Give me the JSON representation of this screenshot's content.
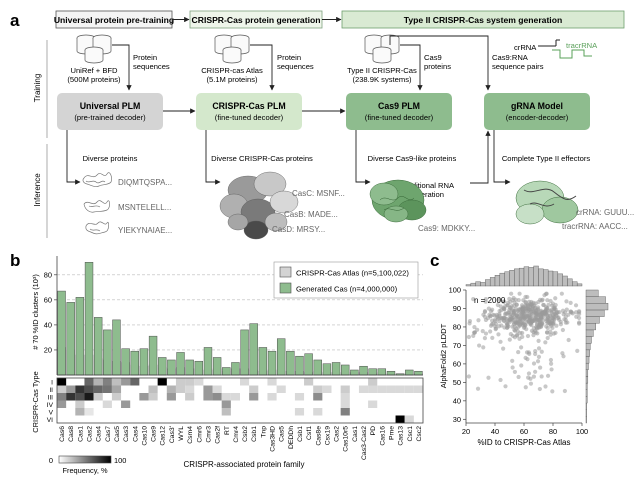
{
  "panel_a": {
    "letter": "a",
    "stage_titles": [
      "Universal protein pre-training",
      "CRISPR-Cas protein generation",
      "Type II CRISPR-Cas system generation"
    ],
    "row_labels": {
      "training": "Training",
      "inference": "Inference"
    },
    "datasets": [
      {
        "line1": "UniRef + BFD",
        "line2": "(500M proteins)"
      },
      {
        "line1": "CRISPR-cas Atlas",
        "line2": "(5.1M proteins)"
      },
      {
        "line1": "Type II CRISPR-Cas",
        "line2": "(238.9K systems)"
      }
    ],
    "arrow_labels": {
      "protein_sequences": [
        "Protein",
        "sequences"
      ],
      "cas9_proteins": [
        "Cas9",
        "proteins"
      ],
      "cas9_rna_pairs": [
        "Cas9:RNA",
        "sequence pairs"
      ],
      "conditional_rna": [
        "Conditional RNA",
        "generation"
      ]
    },
    "crrna_label": "crRNA",
    "tracrrna_label": "tracrRNA",
    "models": [
      {
        "title": "Universal PLM",
        "subtitle": "(pre-trained decoder)"
      },
      {
        "title": "CRISPR-Cas PLM",
        "subtitle": "(fine-tuned decoder)"
      },
      {
        "title": "Cas9 PLM",
        "subtitle": "(fine-tuned decoder)"
      },
      {
        "title": "gRNA Model",
        "subtitle": "(encoder-decoder)"
      }
    ],
    "outputs": [
      "Diverse proteins",
      "Diverse CRISPR-Cas proteins",
      "Diverse Cas9-like proteins",
      "Complete Type II effectors"
    ],
    "protein_seqs": [
      "DIQMTQSPA...",
      "MSNTELELL...",
      "YIEKYNAIAE..."
    ],
    "cas_seqs": [
      "CasC: MSNF...",
      "CasB: MADE...",
      "CasD: MRSY..."
    ],
    "cas9_seq": "Cas9: MDKKY...",
    "rna_seqs": [
      "crRNA: GUUU...",
      "tracrRNA: AACC..."
    ]
  },
  "panel_b": {
    "letter": "b",
    "ylabel": "# 70 %ID clusters (10³)",
    "heat_ylabel": "CRISPR-Cas Type",
    "xlabel": "CRISPR-associated protein family",
    "colorbar_label": "Frequency, %",
    "colorbar_min": "0",
    "colorbar_max": "100",
    "legend": [
      "CRISPR-Cas Atlas (n=5,100,022)",
      "Generated Cas (n=4,000,000)"
    ],
    "colors": {
      "atlas": "#d4d4d4",
      "generated": "#8ebc8e",
      "edge": "#4f4f4f"
    }
  },
  "panel_c": {
    "letter": "c",
    "xlabel": "%ID to CRISPR-Cas Atlas",
    "ylabel": "AlphaFold2 pLDDT",
    "annotation": "n = 2000",
    "point_color": "#9a9a9a"
  },
  "chart_data": [
    {
      "type": "bar",
      "stacked": false,
      "categories": [
        "Cas6",
        "Cas8",
        "Cas1",
        "Cas2",
        "Cas4",
        "Cas7",
        "Cas5",
        "Cas3",
        "Cas4",
        "Cas10",
        "Cas9",
        "Cas12",
        "Cas3'",
        "WYL",
        "Csm4",
        "Cmr6",
        "Cmr3",
        "Cas2f",
        "RT",
        "Cmr4",
        "Csb2",
        "Csb1",
        "Tnp",
        "Cas3HD",
        "Cas5",
        "DEDDh",
        "Csb1",
        "Csf1",
        "Cas8e",
        "Csx19",
        "Cas2",
        "Cas10r5",
        "Cas1",
        "Cas3-Cas2",
        "PD",
        "Cas16",
        "Pme",
        "Cas13",
        "Csc1",
        "Csc2"
      ],
      "series": [
        {
          "name": "CRISPR-Cas Atlas (n=5,100,022)",
          "values": [
            22,
            20,
            16,
            16,
            13,
            12,
            11,
            10,
            8,
            7,
            8,
            6,
            5,
            6,
            5,
            5,
            4,
            5,
            3,
            5,
            5,
            4,
            3,
            4,
            3,
            3,
            3,
            2,
            3,
            2,
            2,
            2,
            2,
            2,
            1,
            2,
            1,
            1,
            1,
            1
          ]
        },
        {
          "name": "Generated Cas (n=4,000,000)",
          "values": [
            67,
            58,
            62,
            90,
            46,
            36,
            44,
            21,
            19,
            21,
            31,
            14,
            12,
            18,
            12,
            11,
            22,
            14,
            6,
            10,
            36,
            41,
            22,
            19,
            29,
            19,
            15,
            17,
            12,
            9,
            10,
            8,
            4,
            7,
            5,
            5,
            3,
            1,
            4,
            3
          ]
        }
      ],
      "ylim": [
        0,
        95
      ],
      "yticks": [
        20,
        40,
        60,
        80
      ],
      "heatmap": {
        "rows": [
          "I",
          "II",
          "III",
          "IV",
          "V",
          "VI"
        ],
        "cells": [
          [
            0,
            0,
            1,
            1,
            1,
            0.15
          ],
          [
            0,
            3,
            0.6
          ],
          [
            0,
            4,
            0.3
          ],
          [
            0,
            5,
            0.5
          ],
          [
            0,
            6,
            0.25
          ],
          [
            0,
            7,
            0.4
          ],
          [
            0,
            8,
            0.6
          ],
          [
            0,
            11,
            1
          ],
          [
            0,
            13,
            0.2
          ],
          [
            0,
            14,
            0.2
          ],
          [
            0,
            15,
            0.15
          ],
          [
            0,
            20,
            0.15
          ],
          [
            0,
            23,
            0.15
          ],
          [
            0,
            27,
            0.2
          ],
          [
            0,
            34,
            0.2
          ],
          [
            1,
            0,
            0.2
          ],
          [
            1,
            1,
            0.4
          ],
          [
            1,
            2,
            0.8
          ],
          [
            1,
            3,
            0.7
          ],
          [
            1,
            4,
            0.6
          ],
          [
            1,
            5,
            0.55
          ],
          [
            1,
            6,
            0.35
          ],
          [
            1,
            10,
            0.25
          ],
          [
            1,
            12,
            0.3
          ],
          [
            1,
            13,
            0.2
          ],
          [
            1,
            14,
            0.15
          ],
          [
            1,
            16,
            0.4
          ],
          [
            1,
            17,
            0.15
          ],
          [
            1,
            21,
            0.2
          ],
          [
            1,
            24,
            0.15
          ],
          [
            1,
            28,
            0.2
          ],
          [
            1,
            29,
            0.15
          ],
          [
            1,
            31,
            0.2
          ],
          [
            1,
            33,
            0.15
          ],
          [
            1,
            34,
            0.15
          ],
          [
            1,
            35,
            0.15
          ],
          [
            1,
            36,
            0.15
          ],
          [
            1,
            37,
            0.15
          ],
          [
            1,
            38,
            0.15
          ],
          [
            1,
            39,
            0.15
          ],
          [
            2,
            0,
            0.5
          ],
          [
            2,
            1,
            0.8
          ],
          [
            2,
            2,
            0.7
          ],
          [
            2,
            3,
            0.9
          ],
          [
            2,
            4,
            0.2
          ],
          [
            2,
            6,
            0.2
          ],
          [
            2,
            9,
            0.4
          ],
          [
            2,
            10,
            0.2
          ],
          [
            2,
            12,
            0.4
          ],
          [
            2,
            14,
            0.2
          ],
          [
            2,
            16,
            0.4
          ],
          [
            2,
            17,
            0.45
          ],
          [
            2,
            18,
            0.15
          ],
          [
            2,
            19,
            0.15
          ],
          [
            2,
            21,
            0.4
          ],
          [
            2,
            23,
            0.15
          ],
          [
            2,
            26,
            0.15
          ],
          [
            2,
            28,
            0.45
          ],
          [
            2,
            31,
            0.15
          ],
          [
            3,
            0,
            0.4
          ],
          [
            3,
            2,
            0.2
          ],
          [
            3,
            5,
            0.15
          ],
          [
            3,
            7,
            0.4
          ],
          [
            3,
            18,
            0.4
          ],
          [
            3,
            31,
            0.15
          ],
          [
            3,
            34,
            0.15
          ],
          [
            4,
            2,
            0.3
          ],
          [
            4,
            3,
            0.1
          ],
          [
            4,
            18,
            0.25
          ],
          [
            4,
            26,
            0.15
          ],
          [
            4,
            28,
            0.15
          ],
          [
            4,
            31,
            0.5
          ],
          [
            5,
            37,
            1
          ],
          [
            5,
            38,
            0.15
          ]
        ],
        "note": "cells are [row, column, frequency fraction]"
      }
    },
    {
      "type": "scatter",
      "n": 2000,
      "xlabel": "%ID to CRISPR-Cas Atlas",
      "ylabel": "AlphaFold2 pLDDT",
      "xlim": [
        20,
        100
      ],
      "ylim": [
        28,
        100
      ],
      "xticks": [
        20,
        40,
        60,
        80,
        100
      ],
      "yticks": [
        30,
        40,
        50,
        60,
        70,
        80,
        90,
        100
      ],
      "marginal_x_hist": [
        2,
        4,
        6,
        5,
        9,
        12,
        15,
        18,
        20,
        22,
        24,
        25,
        27,
        26,
        28,
        24,
        23,
        21,
        20,
        17,
        14,
        10,
        6,
        3
      ],
      "marginal_y_hist": [
        1,
        1,
        1,
        2,
        2,
        2,
        3,
        3,
        4,
        5,
        6,
        7,
        9,
        12,
        16,
        22,
        30,
        36,
        32,
        20
      ]
    }
  ]
}
